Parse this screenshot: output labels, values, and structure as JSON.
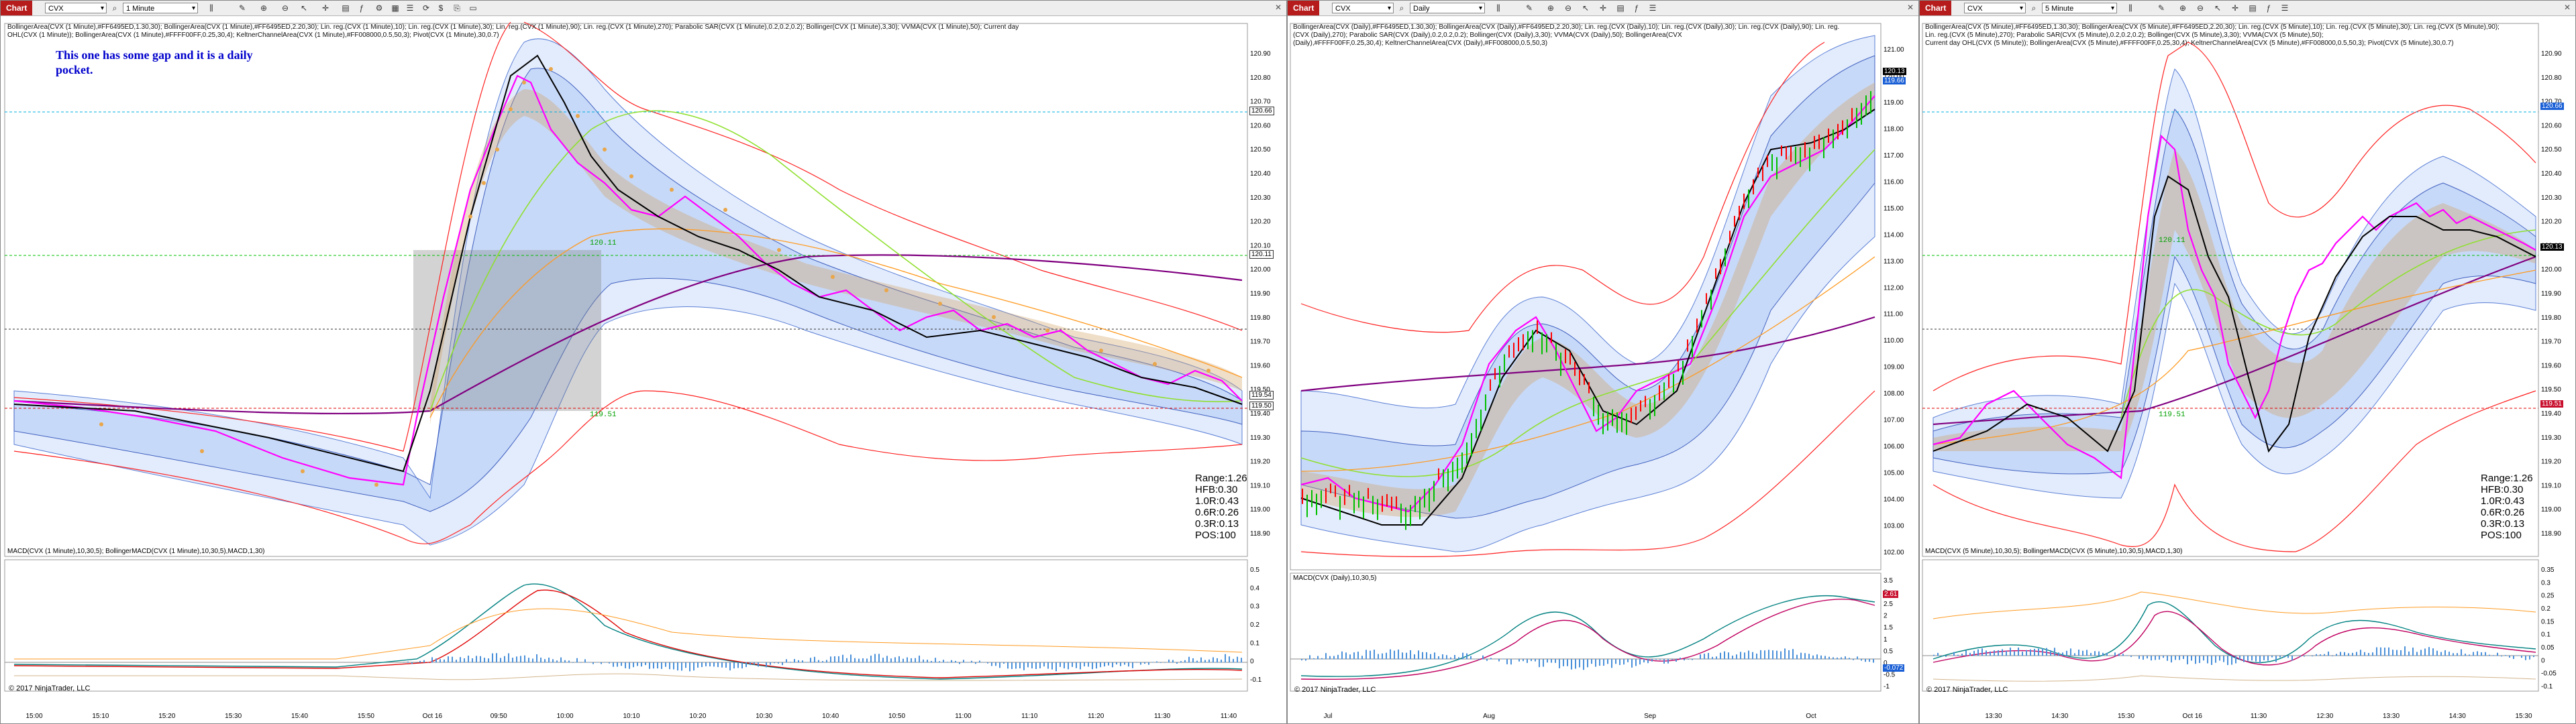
{
  "toolbar": {
    "chart_label": "Chart",
    "icons": [
      "search-icon",
      "bar-type-icon",
      "pencil-icon",
      "zoom-in-icon",
      "zoom-out-icon",
      "cursor-icon",
      "crosshair-icon",
      "data-box-icon",
      "indicators-icon",
      "strategies-icon",
      "templates-icon",
      "properties-icon",
      "refresh-icon",
      "order-icon",
      "chart-trader-icon",
      "split-icon",
      "grid-icon",
      "window-icon"
    ]
  },
  "windows": [
    {
      "instrument": "CVX",
      "interval": "1 Minute",
      "legend_lines": [
        "BollingerArea(CVX (1 Minute),#FF6495ED,1.30,30); BollingerArea(CVX (1 Minute),#FF6495ED,2.20,30); Lin. reg.(CVX (1 Minute),10); Lin. reg.(CVX (1 Minute),30); Lin. reg.(CVX (1 Minute),90); Lin. reg.(CVX (1 Minute),270); Parabolic SAR(CVX (1 Minute),0.2,0.2,0.2); Bollinger(CVX (1 Minute),3,30); VVMA(CVX (1 Minute),50); Current day",
        "OHL(CVX (1 Minute)); BollingerArea(CVX (1 Minute),#FFFF00FF,0.25,30,4); KeltnerChannelArea(CVX (1 Minute),#FF008000,0.5,50,3); Pivot(CVX (1 Minute),30,0.7)"
      ],
      "note_line1": "This one has some gap and it is a daily",
      "note_line2": "pocket.",
      "price_ticks": [
        "120.90",
        "120.80",
        "120.70",
        "120.60",
        "120.50",
        "120.40",
        "120.30",
        "120.20",
        "120.10",
        "120.00",
        "119.90",
        "119.80",
        "119.70",
        "119.60",
        "119.50",
        "119.40",
        "119.30",
        "119.20",
        "119.10",
        "119.00",
        "118.90"
      ],
      "price_markers": [
        "120.66",
        "120.11",
        "119.54",
        "119.50"
      ],
      "level_labels": [
        "120.11",
        "119.51"
      ],
      "stats": [
        "Range:1.26",
        "HFB:0.30",
        "1.0R:0.43",
        "0.6R:0.26",
        "0.3R:0.13",
        "POS:100"
      ],
      "macd_legend": "MACD(CVX (1 Minute),10,30,5); BollingerMACD(CVX (1 Minute),10,30,5),MACD,1,30)",
      "macd_ticks": [
        "0.5",
        "0.4",
        "0.3",
        "0.2",
        "0.1",
        "0",
        "-0.1"
      ],
      "time_labels": [
        "15:00",
        "15:10",
        "15:20",
        "15:30",
        "15:40",
        "15:50",
        "Oct 16",
        "09:50",
        "10:00",
        "10:10",
        "10:20",
        "10:30",
        "10:40",
        "10:50",
        "11:00",
        "11:10",
        "11:20",
        "11:30",
        "11:40"
      ],
      "copyright": "© 2017 NinjaTrader, LLC"
    },
    {
      "instrument": "CVX",
      "interval": "Daily",
      "legend_lines": [
        "BollingerArea(CVX (Daily),#FF6495ED,1.30,30); BollingerArea(CVX (Daily),#FF6495ED,2.20,30); Lin. reg.(CVX (Daily),10); Lin. reg.(CVX (Daily),30); Lin. reg.(CVX (Daily),90); Lin. reg.",
        "(CVX (Daily),270); Parabolic SAR(CVX (Daily),0.2,0.2,0.2); Bollinger(CVX (Daily),3,30); VVMA(CVX (Daily),50); BollingerArea(CVX",
        "(Daily),#FFFF00FF,0.25,30,4); KeltnerChannelArea(CVX (Daily),#FF008000,0.5,50,3)"
      ],
      "price_ticks": [
        "121.00",
        "120.00",
        "119.00",
        "118.00",
        "117.00",
        "116.00",
        "115.00",
        "114.00",
        "113.00",
        "112.00",
        "111.00",
        "110.00",
        "109.00",
        "108.00",
        "107.00",
        "106.00",
        "105.00",
        "104.00",
        "103.00",
        "102.00"
      ],
      "price_markers": [
        "120.13",
        "119.66"
      ],
      "macd_legend": "MACD(CVX (Daily),10,30,5)",
      "macd_ticks": [
        "3.5",
        "3",
        "2.5",
        "2",
        "1.5",
        "1",
        "0.5",
        "0",
        "-0.5",
        "-1"
      ],
      "macd_markers": [
        "2.61",
        "-0.072"
      ],
      "time_labels": [
        "Jul",
        "Aug",
        "Sep",
        "Oct"
      ],
      "copyright": "© 2017 NinjaTrader, LLC"
    },
    {
      "instrument": "CVX",
      "interval": "5 Minute",
      "legend_lines": [
        "BollingerArea(CVX (5 Minute),#FF6495ED,1.30,30); BollingerArea(CVX (5 Minute),#FF6495ED,2.20,30); Lin. reg.(CVX (5 Minute),10); Lin. reg.(CVX (5 Minute),30); Lin. reg.(CVX (5 Minute),90);",
        "Lin. reg.(CVX (5 Minute),270); Parabolic SAR(CVX (5 Minute),0.2,0.2,0.2); Bollinger(CVX (5 Minute),3,30); VVMA(CVX (5 Minute),50);",
        "Current day OHL(CVX (5 Minute)); BollingerArea(CVX (5 Minute),#FFFF00FF,0.25,30,4); KeltnerChannelArea(CVX (5 Minute),#FF008000,0.5,50,3); Pivot(CVX (5 Minute),30,0.7)"
      ],
      "price_ticks": [
        "120.90",
        "120.80",
        "120.70",
        "120.60",
        "120.50",
        "120.40",
        "120.30",
        "120.20",
        "120.10",
        "120.00",
        "119.90",
        "119.80",
        "119.70",
        "119.60",
        "119.50",
        "119.40",
        "119.30",
        "119.20",
        "119.10",
        "119.00",
        "118.90"
      ],
      "price_markers": [
        "120.66",
        "120.13",
        "119.51"
      ],
      "level_labels": [
        "120.11",
        "119.51"
      ],
      "stats": [
        "Range:1.26",
        "HFB:0.30",
        "1.0R:0.43",
        "0.6R:0.26",
        "0.3R:0.13",
        "POS:100"
      ],
      "macd_legend": "MACD(CVX (5 Minute),10,30,5); BollingerMACD(CVX (5 Minute),10,30,5),MACD,1,30)",
      "macd_ticks": [
        "0.35",
        "0.3",
        "0.25",
        "0.2",
        "0.15",
        "0.1",
        "0.05",
        "0",
        "-0.05",
        "-0.1"
      ],
      "time_labels": [
        "13:30",
        "14:30",
        "15:30",
        "Oct 16",
        "11:30",
        "12:30",
        "13:30",
        "14:30",
        "15:30"
      ],
      "copyright": "© 2017 NinjaTrader, LLC"
    }
  ],
  "colors": {
    "chart_tab": "#b71c1c",
    "band_fill": "#6495ed",
    "up_bar": "#00c000",
    "down_bar": "#ff0000",
    "magenta_band": "#ff00ff",
    "keltner": "#008000",
    "note_text": "#0000cc"
  }
}
